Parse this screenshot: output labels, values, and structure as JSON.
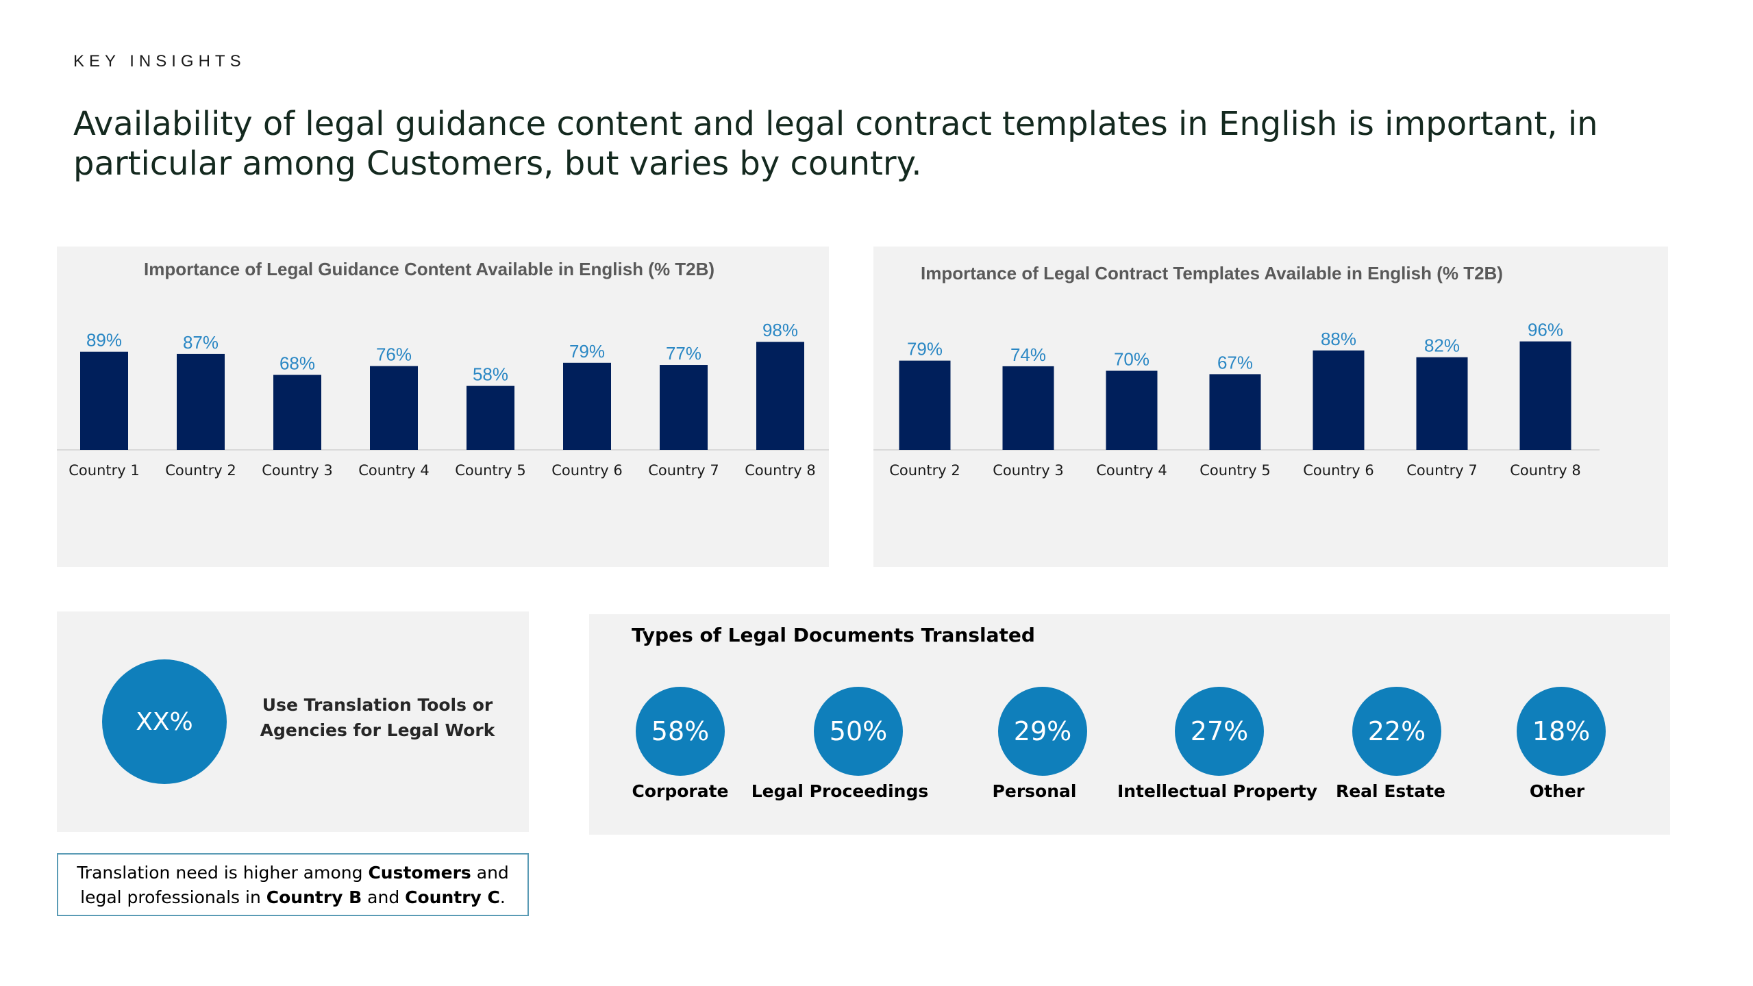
{
  "eyebrow": "KEY INSIGHTS",
  "headline": "Availability of legal guidance content and legal contract templates in English is important, in particular among Customers, but varies by country.",
  "colors": {
    "bar": "#001f5b",
    "label": "#2a87c4",
    "circle": "#0f7fbb",
    "panel": "#f2f2f2"
  },
  "chart_data": [
    {
      "type": "bar",
      "title": "Importance of Legal Guidance Content Available in English (% T2B)",
      "categories": [
        "Country 1",
        "Country 2",
        "Country 3",
        "Country 4",
        "Country 5",
        "Country 6",
        "Country 7",
        "Country 8"
      ],
      "values": [
        89,
        87,
        68,
        76,
        58,
        79,
        77,
        98
      ],
      "data_labels": [
        "89%",
        "87%",
        "68%",
        "76%",
        "58%",
        "79%",
        "77%",
        "98%"
      ],
      "ylim": [
        0,
        100
      ],
      "grid": false,
      "legend": "none"
    },
    {
      "type": "bar",
      "title": "Importance of Legal Contract Templates Available in English (% T2B)",
      "categories": [
        "Country 2",
        "Country 3",
        "Country 4",
        "Country 5",
        "Country 6",
        "Country 7",
        "Country 8"
      ],
      "values": [
        79,
        74,
        70,
        67,
        88,
        82,
        96
      ],
      "data_labels": [
        "79%",
        "74%",
        "70%",
        "67%",
        "88%",
        "82%",
        "96%"
      ],
      "ylim": [
        0,
        100
      ],
      "grid": false,
      "legend": "none"
    }
  ],
  "translation_tools": {
    "value": "XX%",
    "label": "Use Translation Tools or Agencies for Legal Work"
  },
  "document_types": {
    "title": "Types of Legal Documents Translated",
    "items": [
      {
        "value": "58%",
        "label": "Corporate"
      },
      {
        "value": "50%",
        "label": "Legal Proceedings"
      },
      {
        "value": "29%",
        "label": "Personal"
      },
      {
        "value": "27%",
        "label": "Intellectual Property"
      },
      {
        "value": "22%",
        "label": "Real Estate"
      },
      {
        "value": "18%",
        "label": "Other"
      }
    ]
  },
  "note": {
    "p1": "Translation need is higher among ",
    "b1": "Customers",
    "p2": " and legal professionals in ",
    "b2": "Country B",
    "p3": " and ",
    "b3": "Country C",
    "p4": "."
  }
}
